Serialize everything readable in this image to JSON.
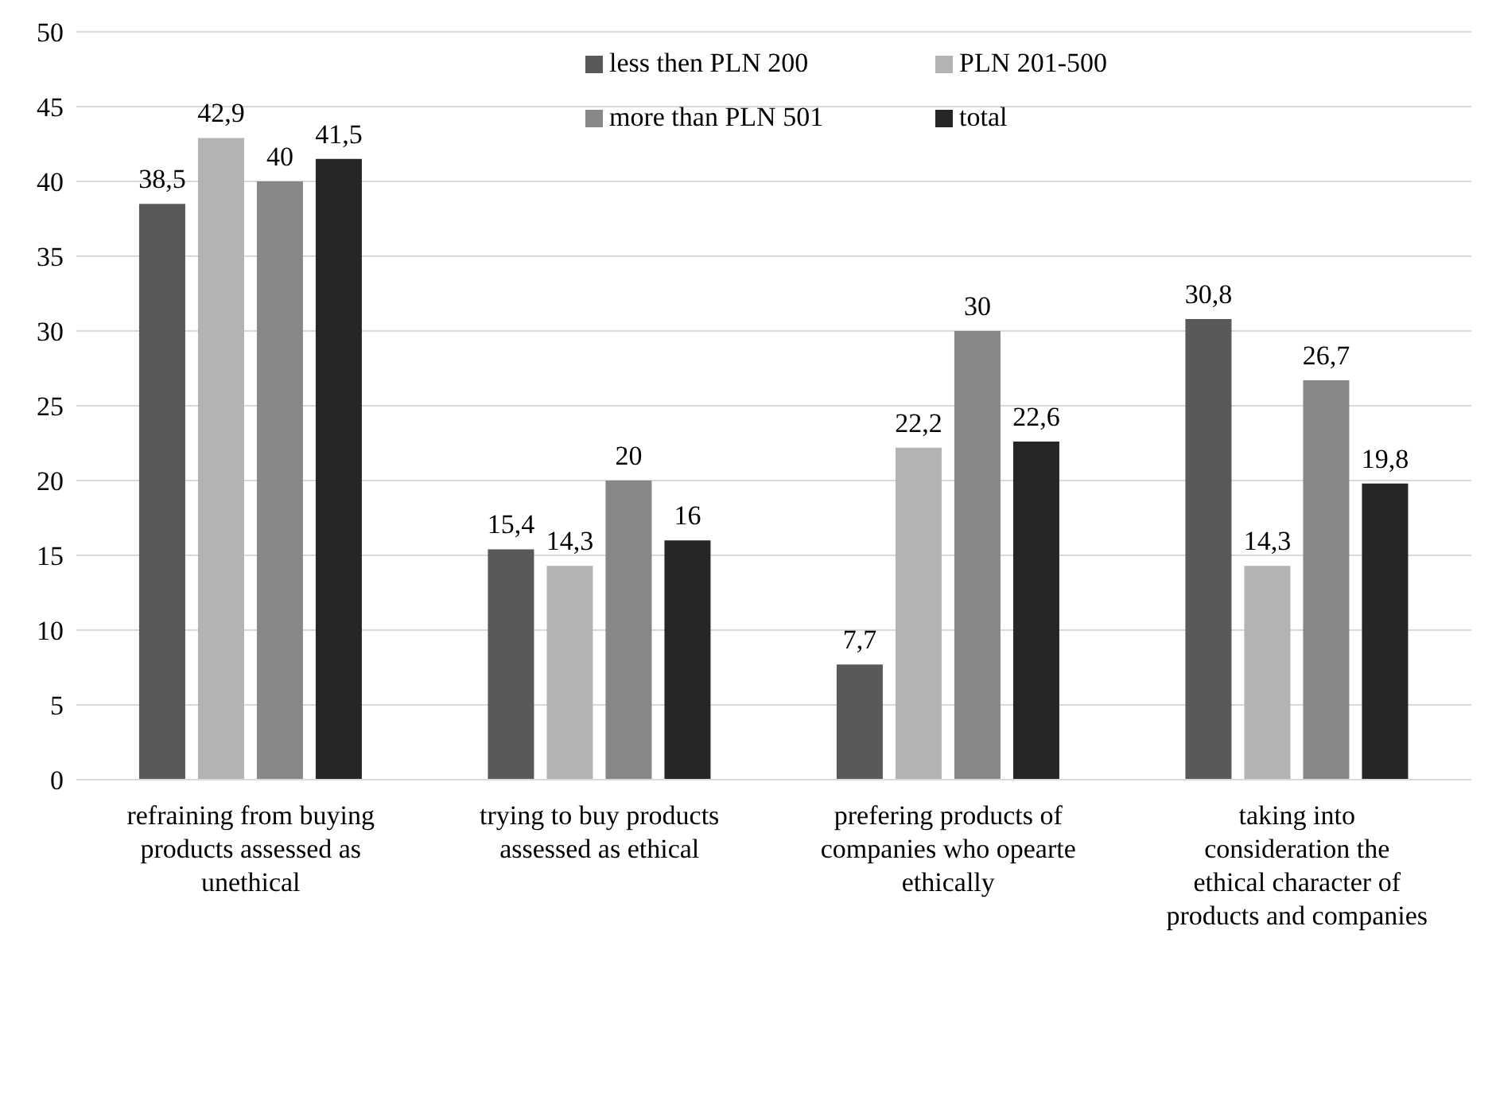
{
  "chart_data": {
    "type": "bar",
    "categories": [
      "refraining from buying products assessed as unethical",
      "trying to buy products assessed as ethical",
      "prefering products of companies who opearte ethically",
      "taking into consideration the ethical character of products and companies"
    ],
    "series": [
      {
        "name": "less then PLN 200",
        "color": "#595959",
        "values": [
          38.5,
          15.4,
          7.7,
          30.8
        ],
        "value_labels": [
          "38,5",
          "15,4",
          "7,7",
          "30,8"
        ]
      },
      {
        "name": "PLN 201-500",
        "color": "#b3b3b3",
        "values": [
          42.9,
          14.3,
          22.2,
          14.3
        ],
        "value_labels": [
          "42,9",
          "14,3",
          "22,2",
          "14,3"
        ]
      },
      {
        "name": "more than PLN 501",
        "color": "#878787",
        "values": [
          40,
          20,
          30,
          26.7
        ],
        "value_labels": [
          "40",
          "20",
          "30",
          "26,7"
        ]
      },
      {
        "name": "total",
        "color": "#262626",
        "values": [
          41.5,
          16,
          22.6,
          19.8
        ],
        "value_labels": [
          "41,5",
          "16",
          "22,6",
          "19,8"
        ]
      }
    ],
    "ylim": [
      0,
      50
    ],
    "yticks": [
      0,
      5,
      10,
      15,
      20,
      25,
      30,
      35,
      40,
      45,
      50
    ],
    "grid": "y",
    "legend": "top right"
  }
}
